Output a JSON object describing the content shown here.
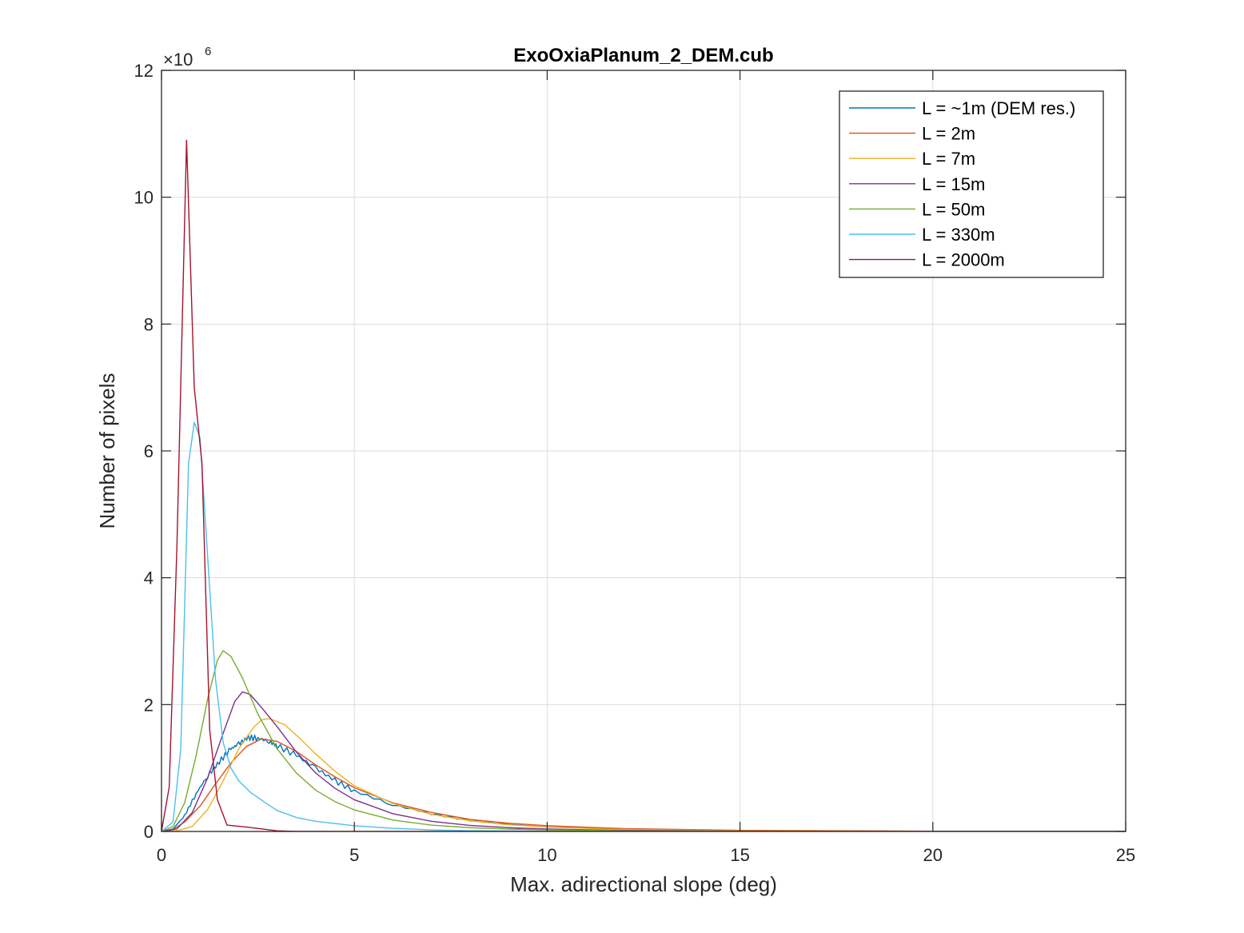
{
  "chart_data": {
    "type": "line",
    "title": "ExoOxiaPlanum_2_DEM.cub",
    "xlabel": "Max. adirectional slope (deg)",
    "ylabel": "Number of pixels",
    "xlim": [
      0,
      25
    ],
    "ylim": [
      0,
      12000000
    ],
    "xticks": [
      0,
      5,
      10,
      15,
      20,
      25
    ],
    "yticks": [
      0,
      2,
      4,
      6,
      8,
      10,
      12
    ],
    "y_exponent_label": "×10",
    "y_exponent_power": "6",
    "y_scale_factor": 1000000,
    "grid": true,
    "legend_position": "top-right",
    "series": [
      {
        "name": "L = ~1m (DEM res.)",
        "color": "#0072BD",
        "noise": true,
        "points": [
          [
            0,
            0
          ],
          [
            0.3,
            40000
          ],
          [
            0.6,
            250000
          ],
          [
            0.9,
            600000
          ],
          [
            1.2,
            880000
          ],
          [
            1.5,
            1100000
          ],
          [
            1.8,
            1300000
          ],
          [
            2.0,
            1380000
          ],
          [
            2.25,
            1480000
          ],
          [
            2.5,
            1470000
          ],
          [
            2.8,
            1420000
          ],
          [
            3.0,
            1350000
          ],
          [
            3.5,
            1200000
          ],
          [
            4.0,
            1000000
          ],
          [
            4.5,
            800000
          ],
          [
            5.0,
            640000
          ],
          [
            6.0,
            420000
          ],
          [
            7.0,
            280000
          ],
          [
            8.0,
            170000
          ],
          [
            9.0,
            110000
          ],
          [
            10.0,
            70000
          ],
          [
            12.0,
            35000
          ],
          [
            15.0,
            12000
          ],
          [
            20.0,
            2500
          ],
          [
            25.0,
            0
          ]
        ]
      },
      {
        "name": "L = 2m",
        "color": "#D95319",
        "points": [
          [
            0,
            0
          ],
          [
            0.3,
            30000
          ],
          [
            0.6,
            150000
          ],
          [
            1.0,
            400000
          ],
          [
            1.4,
            750000
          ],
          [
            1.8,
            1080000
          ],
          [
            2.2,
            1340000
          ],
          [
            2.6,
            1460000
          ],
          [
            3.0,
            1420000
          ],
          [
            3.5,
            1260000
          ],
          [
            4.0,
            1050000
          ],
          [
            4.5,
            860000
          ],
          [
            5.0,
            690000
          ],
          [
            6.0,
            450000
          ],
          [
            7.0,
            300000
          ],
          [
            8.0,
            190000
          ],
          [
            9.0,
            130000
          ],
          [
            10.0,
            90000
          ],
          [
            12.0,
            45000
          ],
          [
            15.0,
            18000
          ],
          [
            20.0,
            4000
          ],
          [
            25.0,
            0
          ]
        ]
      },
      {
        "name": "L = 7m",
        "color": "#EDB120",
        "points": [
          [
            0,
            0
          ],
          [
            0.4,
            10000
          ],
          [
            0.8,
            80000
          ],
          [
            1.2,
            350000
          ],
          [
            1.6,
            800000
          ],
          [
            2.0,
            1300000
          ],
          [
            2.4,
            1650000
          ],
          [
            2.6,
            1760000
          ],
          [
            2.8,
            1780000
          ],
          [
            3.2,
            1680000
          ],
          [
            3.6,
            1460000
          ],
          [
            4.0,
            1220000
          ],
          [
            4.5,
            950000
          ],
          [
            5.0,
            720000
          ],
          [
            6.0,
            440000
          ],
          [
            7.0,
            270000
          ],
          [
            8.0,
            170000
          ],
          [
            9.0,
            105000
          ],
          [
            10.0,
            70000
          ],
          [
            12.0,
            30000
          ],
          [
            15.0,
            10000
          ],
          [
            20.0,
            2000
          ],
          [
            25.0,
            0
          ]
        ]
      },
      {
        "name": "L = 15m",
        "color": "#7E2F8E",
        "points": [
          [
            0,
            0
          ],
          [
            0.4,
            40000
          ],
          [
            0.8,
            300000
          ],
          [
            1.2,
            850000
          ],
          [
            1.6,
            1550000
          ],
          [
            1.9,
            2050000
          ],
          [
            2.1,
            2200000
          ],
          [
            2.3,
            2160000
          ],
          [
            2.6,
            1950000
          ],
          [
            3.0,
            1650000
          ],
          [
            3.5,
            1250000
          ],
          [
            4.0,
            920000
          ],
          [
            4.5,
            680000
          ],
          [
            5.0,
            500000
          ],
          [
            6.0,
            280000
          ],
          [
            7.0,
            160000
          ],
          [
            8.0,
            95000
          ],
          [
            9.0,
            60000
          ],
          [
            10.0,
            38000
          ],
          [
            12.0,
            16000
          ],
          [
            15.0,
            5000
          ],
          [
            20.0,
            1000
          ],
          [
            25.0,
            0
          ]
        ]
      },
      {
        "name": "L = 50m",
        "color": "#77AC30",
        "points": [
          [
            0,
            0
          ],
          [
            0.3,
            80000
          ],
          [
            0.6,
            450000
          ],
          [
            0.9,
            1200000
          ],
          [
            1.2,
            2100000
          ],
          [
            1.45,
            2700000
          ],
          [
            1.6,
            2850000
          ],
          [
            1.8,
            2760000
          ],
          [
            2.1,
            2420000
          ],
          [
            2.5,
            1850000
          ],
          [
            3.0,
            1300000
          ],
          [
            3.5,
            920000
          ],
          [
            4.0,
            650000
          ],
          [
            4.5,
            470000
          ],
          [
            5.0,
            340000
          ],
          [
            6.0,
            180000
          ],
          [
            7.0,
            100000
          ],
          [
            8.0,
            60000
          ],
          [
            9.0,
            38000
          ],
          [
            10.0,
            25000
          ],
          [
            12.0,
            10000
          ],
          [
            15.0,
            3000
          ],
          [
            20.0,
            500
          ],
          [
            25.0,
            0
          ]
        ]
      },
      {
        "name": "L = 330m",
        "color": "#4DBEEE",
        "points": [
          [
            0,
            0
          ],
          [
            0.3,
            150000
          ],
          [
            0.5,
            1300000
          ],
          [
            0.7,
            5800000
          ],
          [
            0.85,
            6450000
          ],
          [
            1.0,
            6200000
          ],
          [
            1.2,
            4300000
          ],
          [
            1.4,
            2400000
          ],
          [
            1.6,
            1400000
          ],
          [
            1.8,
            1000000
          ],
          [
            2.0,
            800000
          ],
          [
            2.3,
            620000
          ],
          [
            2.7,
            450000
          ],
          [
            3.0,
            330000
          ],
          [
            3.5,
            220000
          ],
          [
            4.0,
            160000
          ],
          [
            5.0,
            90000
          ],
          [
            6.0,
            50000
          ],
          [
            7.0,
            25000
          ],
          [
            8.0,
            12000
          ],
          [
            10.0,
            4000
          ],
          [
            15.0,
            500
          ],
          [
            25.0,
            0
          ]
        ]
      },
      {
        "name": "L = 2000m",
        "color": "#A2142F",
        "points": [
          [
            0,
            0
          ],
          [
            0.2,
            700000
          ],
          [
            0.4,
            4500000
          ],
          [
            0.65,
            10900000
          ],
          [
            0.85,
            7000000
          ],
          [
            1.05,
            5800000
          ],
          [
            1.25,
            1600000
          ],
          [
            1.45,
            500000
          ],
          [
            1.7,
            100000
          ],
          [
            2.2,
            70000
          ],
          [
            2.6,
            40000
          ],
          [
            3.0,
            10000
          ],
          [
            3.5,
            0
          ],
          [
            25.0,
            0
          ]
        ]
      }
    ]
  }
}
